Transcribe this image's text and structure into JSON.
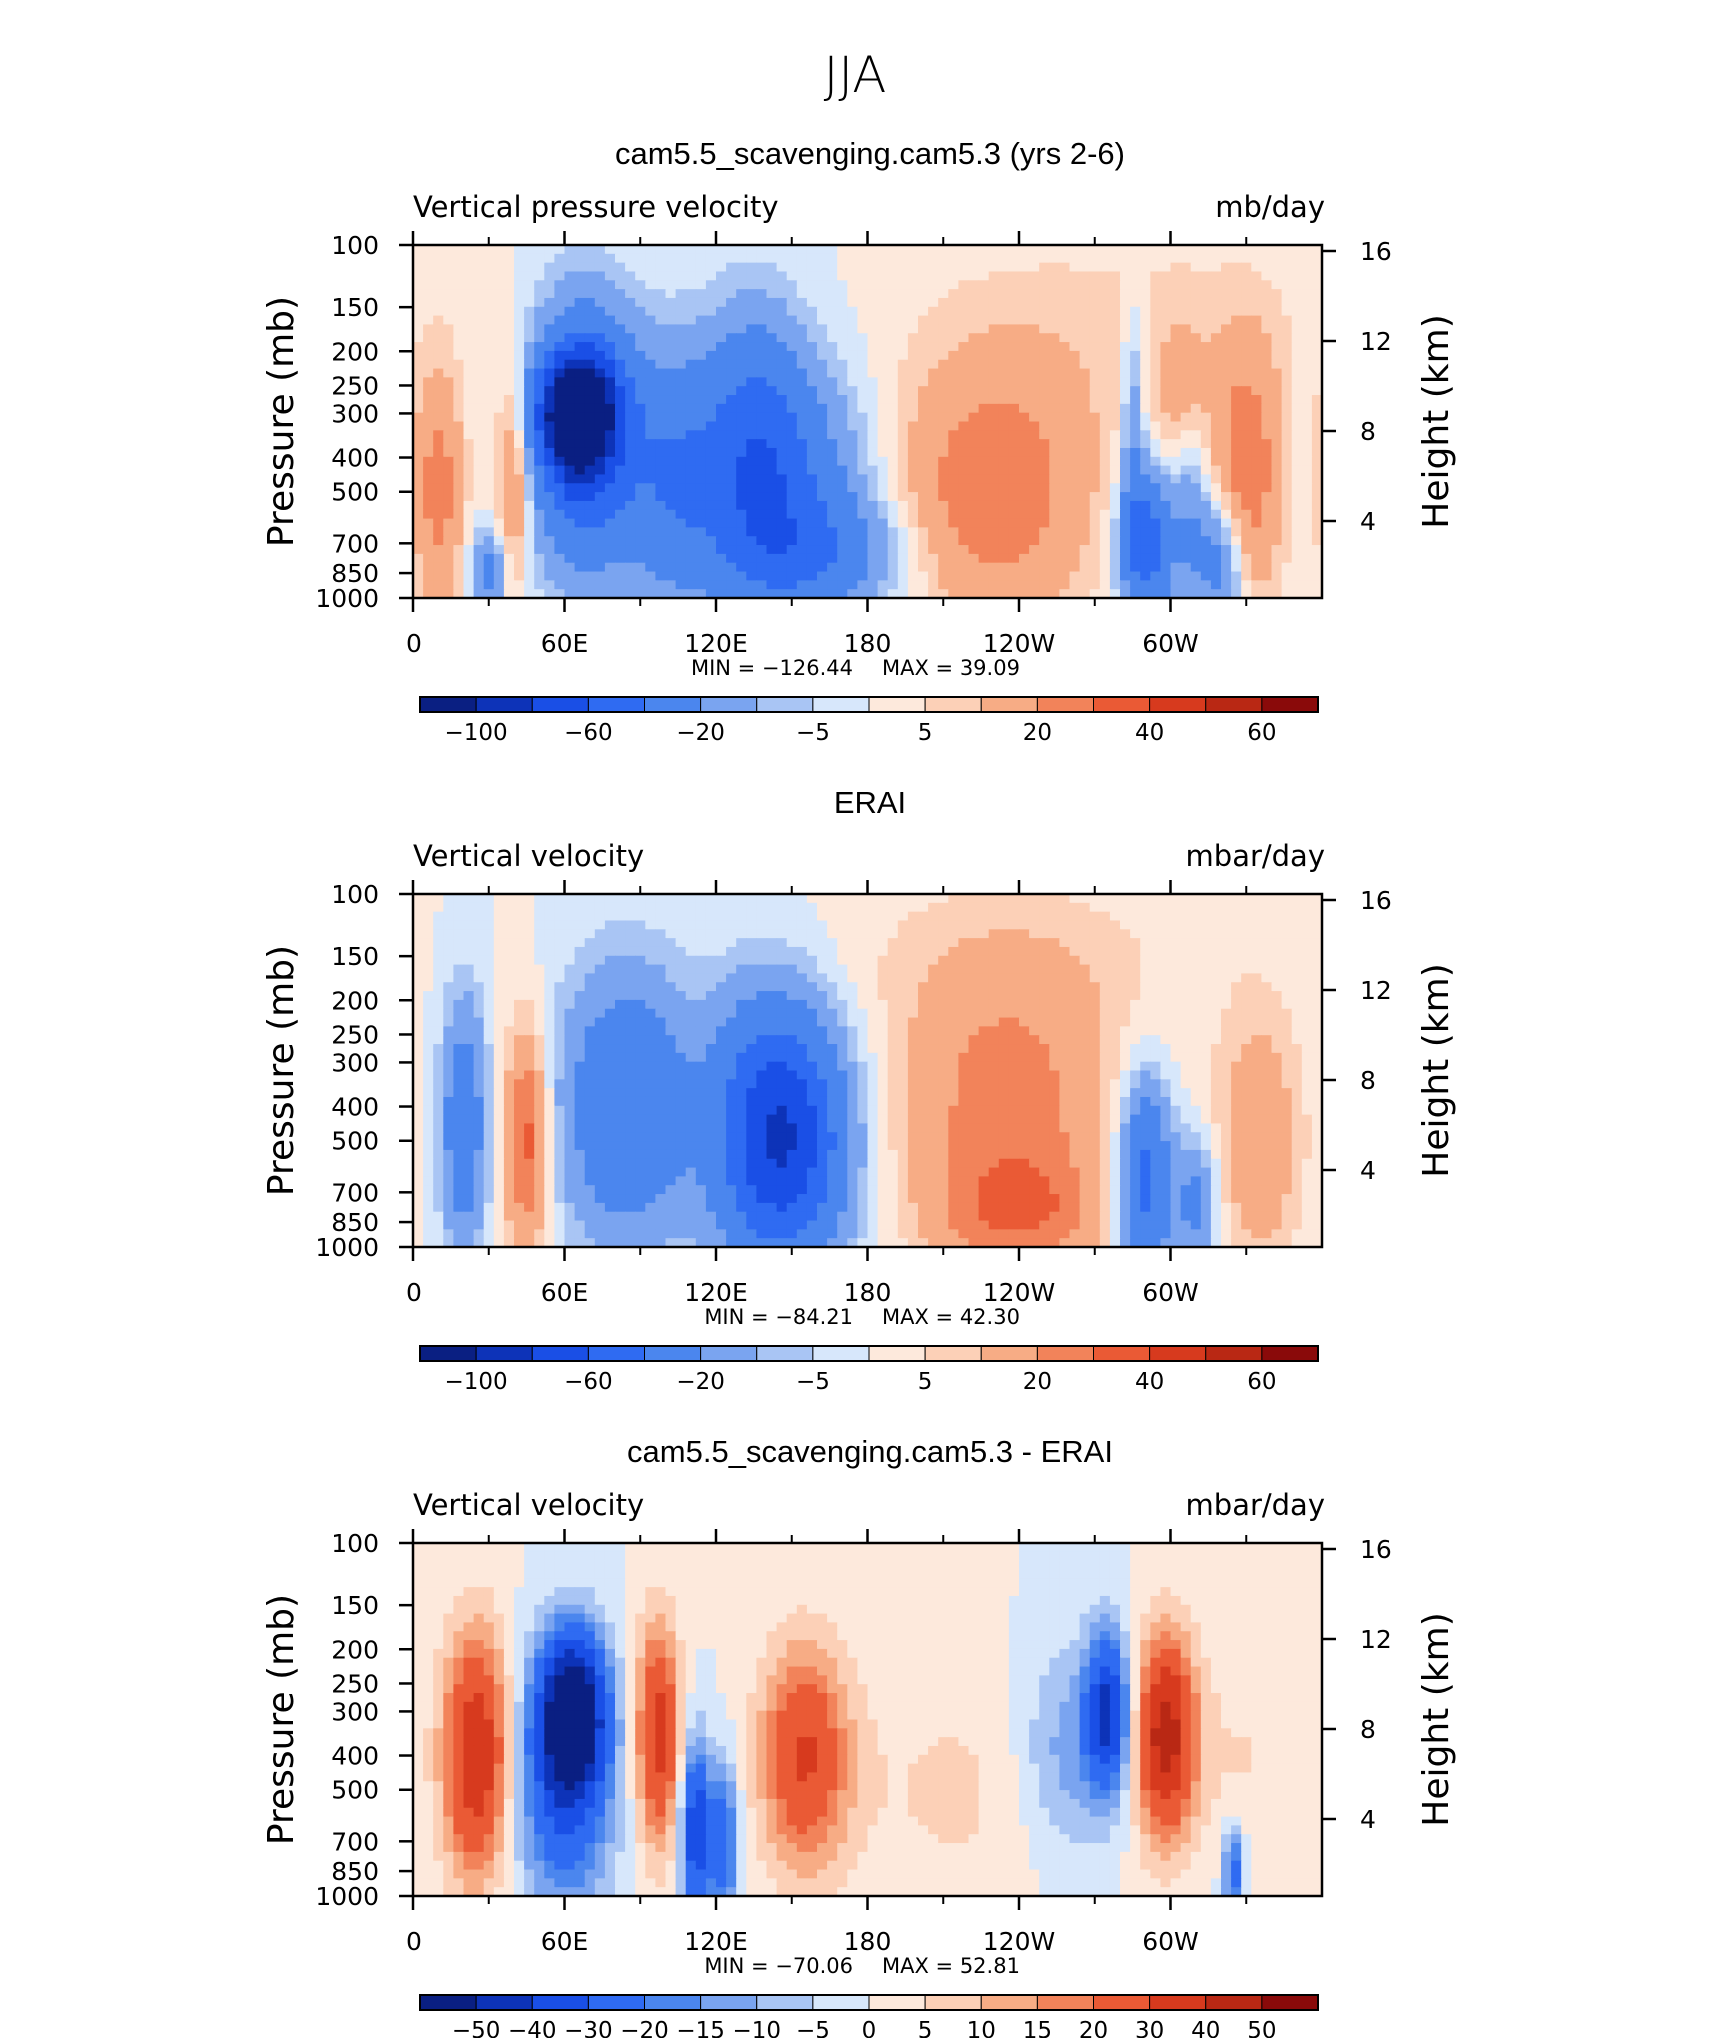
{
  "figure_title": "JJA",
  "colors": {
    "diverging_scale": [
      "#0a1f82",
      "#0d33b8",
      "#1a4fe6",
      "#2f6bf2",
      "#4b86ee",
      "#7aa4f0",
      "#a9c5f4",
      "#d7e7fb",
      "#fde9dc",
      "#fcd0b7",
      "#f7ac85",
      "#f2835a",
      "#ea5a35",
      "#d73a1e",
      "#b92814",
      "#8a0a0a"
    ]
  },
  "chart_data": [
    {
      "type": "heatmap",
      "title": "cam5.5_scavenging.cam5.3 (yrs 2-6)",
      "variable_label": "Vertical pressure velocity",
      "units": "mb/day",
      "ylabel": "Pressure (mb)",
      "y2label": "Height (km)",
      "xticks": [
        "0",
        "60E",
        "120E",
        "180",
        "120W",
        "60W"
      ],
      "yticks": [
        "100",
        "150",
        "200",
        "250",
        "300",
        "400",
        "500",
        "700",
        "850",
        "1000"
      ],
      "y2ticks": [
        "16",
        "12",
        "8",
        "4"
      ],
      "xlim": [
        0,
        360
      ],
      "ylim": [
        1000,
        100
      ],
      "y_scale": "log",
      "min_label": "MIN =  −126.44",
      "max_label": "MAX =   39.09",
      "min": -126.44,
      "max": 39.09,
      "colorbar_labels": [
        "−100",
        "−60",
        "−20",
        "−5",
        "5",
        "20",
        "40",
        "60"
      ],
      "features": [
        {
          "lon": 65,
          "p": 300,
          "v": -110,
          "sx": 10,
          "sp": 0.25
        },
        {
          "lon": 68,
          "p": 350,
          "v": -70,
          "sx": 14,
          "sp": 0.55
        },
        {
          "lon": 103,
          "p": 450,
          "v": -35,
          "sx": 13,
          "sp": 0.55
        },
        {
          "lon": 135,
          "p": 380,
          "v": -40,
          "sx": 14,
          "sp": 0.6
        },
        {
          "lon": 150,
          "p": 500,
          "v": -30,
          "sx": 22,
          "sp": 0.55
        },
        {
          "lon": 160,
          "p": 750,
          "v": -25,
          "sx": 25,
          "sp": 0.25
        },
        {
          "lon": 30,
          "p": 850,
          "v": -25,
          "sx": 5,
          "sp": 0.2
        },
        {
          "lon": 290,
          "p": 700,
          "v": -55,
          "sx": 7,
          "sp": 0.35
        },
        {
          "lon": 307,
          "p": 500,
          "v": -30,
          "sx": 6,
          "sp": 0.45
        },
        {
          "lon": 320,
          "p": 800,
          "v": -30,
          "sx": 7,
          "sp": 0.3
        },
        {
          "lon": 285,
          "p": 300,
          "v": -18,
          "sx": 3,
          "sp": 0.5
        },
        {
          "lon": 10,
          "p": 500,
          "v": 25,
          "sx": 7,
          "sp": 0.55
        },
        {
          "lon": 40,
          "p": 450,
          "v": 25,
          "sx": 5,
          "sp": 0.5
        },
        {
          "lon": 230,
          "p": 500,
          "v": 28,
          "sx": 28,
          "sp": 0.6
        },
        {
          "lon": 330,
          "p": 450,
          "v": 28,
          "sx": 10,
          "sp": 0.6
        },
        {
          "lon": 305,
          "p": 350,
          "v": 22,
          "sx": 7,
          "sp": 0.45
        },
        {
          "lon": 280,
          "p": 170,
          "v": 6,
          "sx": 60,
          "sp": 0.5
        }
      ]
    },
    {
      "type": "heatmap",
      "title": "ERAI",
      "variable_label": "Vertical velocity",
      "units": "mbar/day",
      "ylabel": "Pressure (mb)",
      "y2label": "Height (km)",
      "xticks": [
        "0",
        "60E",
        "120E",
        "180",
        "120W",
        "60W"
      ],
      "yticks": [
        "100",
        "150",
        "200",
        "250",
        "300",
        "400",
        "500",
        "700",
        "850",
        "1000"
      ],
      "y2ticks": [
        "16",
        "12",
        "8",
        "4"
      ],
      "xlim": [
        0,
        360
      ],
      "ylim": [
        1000,
        100
      ],
      "y_scale": "log",
      "min_label": "MIN =  −84.21",
      "max_label": "MAX =   42.30",
      "min": -84.21,
      "max": 42.3,
      "colorbar_labels": [
        "−100",
        "−60",
        "−20",
        "−5",
        "5",
        "20",
        "40",
        "60"
      ],
      "features": [
        {
          "lon": 20,
          "p": 450,
          "v": -35,
          "sx": 6,
          "sp": 0.55
        },
        {
          "lon": 85,
          "p": 400,
          "v": -40,
          "sx": 18,
          "sp": 0.6
        },
        {
          "lon": 150,
          "p": 500,
          "v": -65,
          "sx": 16,
          "sp": 0.55
        },
        {
          "lon": 135,
          "p": 450,
          "v": -30,
          "sx": 14,
          "sp": 0.6
        },
        {
          "lon": 290,
          "p": 650,
          "v": -50,
          "sx": 7,
          "sp": 0.45
        },
        {
          "lon": 310,
          "p": 750,
          "v": -25,
          "sx": 6,
          "sp": 0.3
        },
        {
          "lon": 45,
          "p": 500,
          "v": 35,
          "sx": 6,
          "sp": 0.5
        },
        {
          "lon": 235,
          "p": 400,
          "v": 25,
          "sx": 30,
          "sp": 0.65
        },
        {
          "lon": 240,
          "p": 800,
          "v": 22,
          "sx": 22,
          "sp": 0.25
        },
        {
          "lon": 335,
          "p": 500,
          "v": 18,
          "sx": 12,
          "sp": 0.6
        },
        {
          "lon": 240,
          "p": 150,
          "v": 5,
          "sx": 60,
          "sp": 0.4
        }
      ]
    },
    {
      "type": "heatmap",
      "title": "cam5.5_scavenging.cam5.3 - ERAI",
      "variable_label": "Vertical velocity",
      "units": "mbar/day",
      "ylabel": "Pressure (mb)",
      "y2label": "Height (km)",
      "xticks": [
        "0",
        "60E",
        "120E",
        "180",
        "120W",
        "60W"
      ],
      "yticks": [
        "100",
        "150",
        "200",
        "250",
        "300",
        "400",
        "500",
        "700",
        "850",
        "1000"
      ],
      "y2ticks": [
        "16",
        "12",
        "8",
        "4"
      ],
      "xlim": [
        0,
        360
      ],
      "ylim": [
        1000,
        100
      ],
      "y_scale": "log",
      "min_label": "MIN =  −70.06",
      "max_label": "MAX =   52.81",
      "min": -70.06,
      "max": 52.81,
      "colorbar_labels": [
        "−50",
        "−40",
        "−30",
        "−20",
        "−15",
        "−10",
        "−5",
        "0",
        "5",
        "10",
        "15",
        "20",
        "30",
        "40",
        "50"
      ],
      "features": [
        {
          "lon": 63,
          "p": 300,
          "v": -60,
          "sx": 9,
          "sp": 0.35
        },
        {
          "lon": 60,
          "p": 500,
          "v": -30,
          "sx": 13,
          "sp": 0.55
        },
        {
          "lon": 112,
          "p": 650,
          "v": -40,
          "sx": 4,
          "sp": 0.4
        },
        {
          "lon": 123,
          "p": 700,
          "v": -28,
          "sx": 4,
          "sp": 0.35
        },
        {
          "lon": 275,
          "p": 300,
          "v": -40,
          "sx": 6,
          "sp": 0.35
        },
        {
          "lon": 260,
          "p": 400,
          "v": -15,
          "sx": 15,
          "sp": 0.5
        },
        {
          "lon": 325,
          "p": 850,
          "v": -25,
          "sx": 3,
          "sp": 0.2
        },
        {
          "lon": 25,
          "p": 400,
          "v": 40,
          "sx": 9,
          "sp": 0.55
        },
        {
          "lon": 97,
          "p": 350,
          "v": 35,
          "sx": 6,
          "sp": 0.5
        },
        {
          "lon": 155,
          "p": 400,
          "v": 30,
          "sx": 12,
          "sp": 0.5
        },
        {
          "lon": 298,
          "p": 350,
          "v": 45,
          "sx": 8,
          "sp": 0.45
        },
        {
          "lon": 220,
          "p": 500,
          "v": 6,
          "sx": 40,
          "sp": 0.6
        },
        {
          "lon": 330,
          "p": 400,
          "v": 5,
          "sx": 20,
          "sp": 0.5
        }
      ]
    }
  ]
}
